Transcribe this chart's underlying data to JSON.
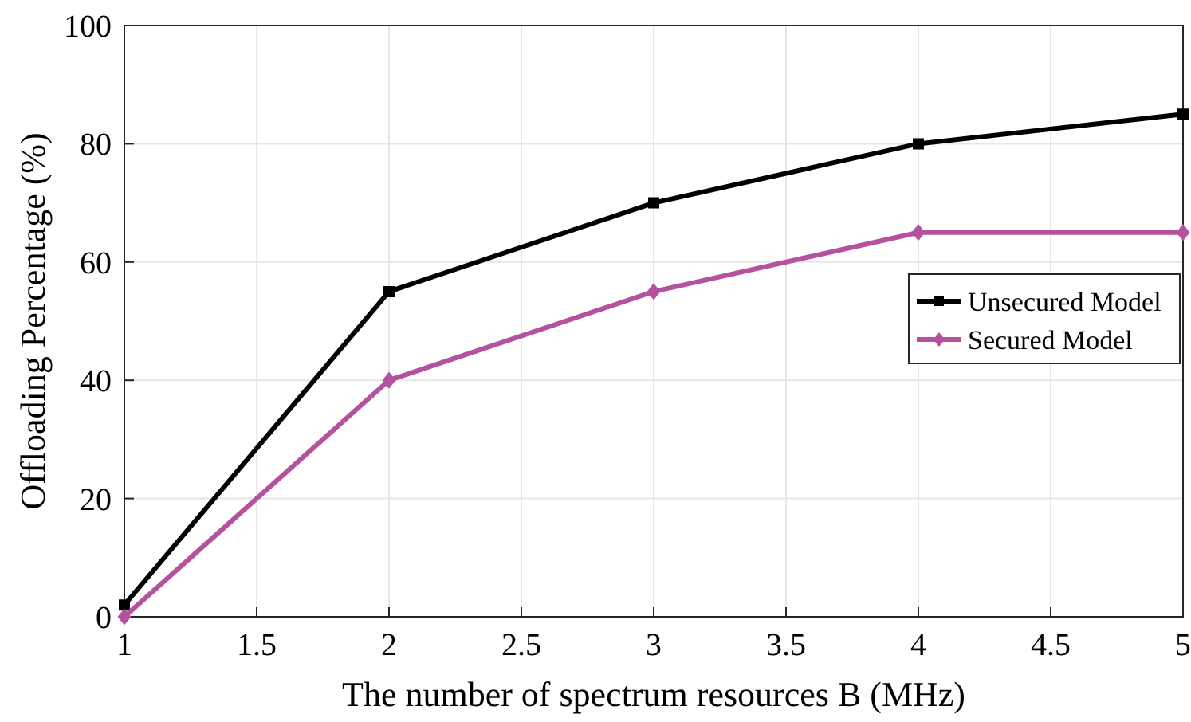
{
  "chart_data": {
    "type": "line",
    "xlabel": "The number of spectrum resources B (MHz)",
    "ylabel": "Offloading Percentage (%)",
    "x": [
      1,
      2,
      3,
      4,
      5
    ],
    "series": [
      {
        "name": "Unsecured Model",
        "color": "#000000",
        "marker": "square",
        "values": [
          2,
          55,
          70,
          80,
          85
        ]
      },
      {
        "name": "Secured Model",
        "color": "#b5529f",
        "marker": "diamond",
        "values": [
          0,
          40,
          55,
          65,
          65
        ]
      }
    ],
    "xlim": [
      1,
      5
    ],
    "xticks": [
      1,
      1.5,
      2,
      2.5,
      3,
      3.5,
      4,
      4.5,
      5
    ],
    "ylim": [
      0,
      100
    ],
    "yticks": [
      0,
      20,
      40,
      60,
      80,
      100
    ],
    "grid": true,
    "legend": "right",
    "line_style": "solid"
  }
}
